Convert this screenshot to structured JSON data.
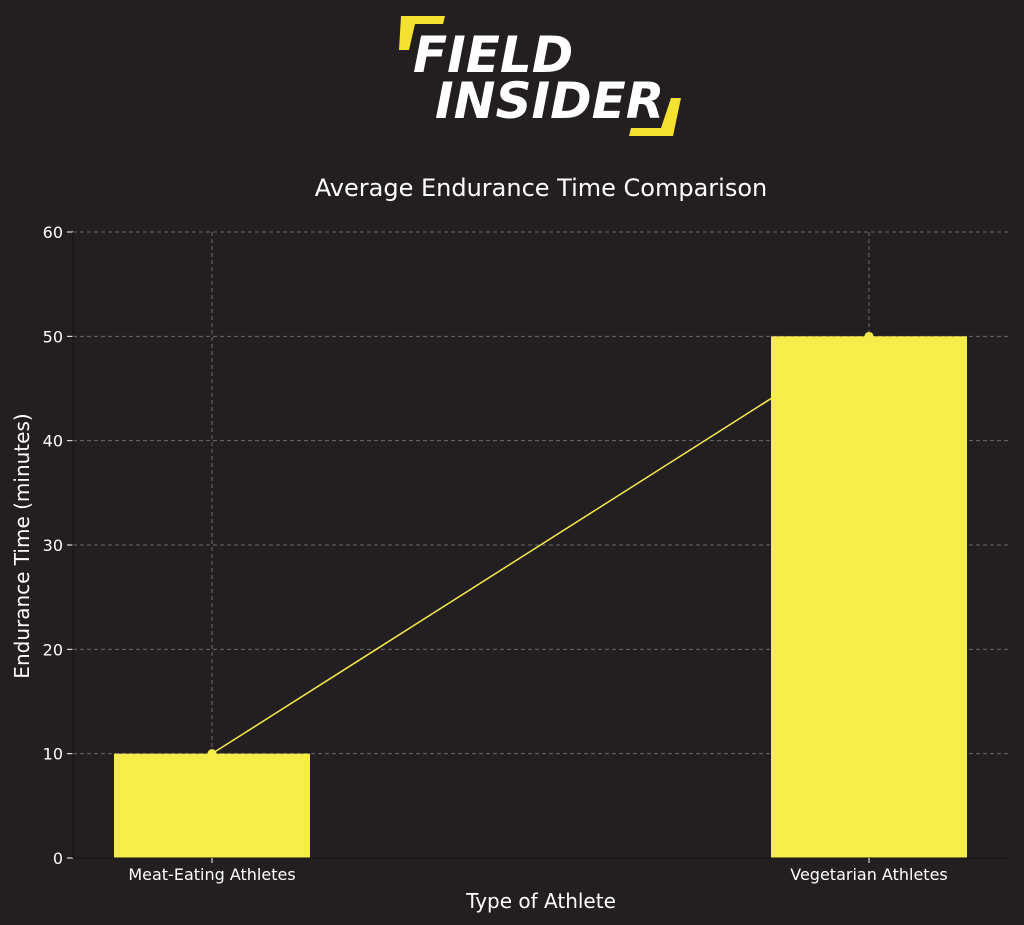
{
  "brand": {
    "line1": "FIELD",
    "line2": "INSIDER",
    "accent_color": "#f5e130"
  },
  "chart_data": {
    "type": "bar",
    "title": "Average Endurance Time Comparison",
    "xlabel": "Type of Athlete",
    "ylabel": "Endurance Time (minutes)",
    "categories": [
      "Meat-Eating Athletes",
      "Vegetarian Athletes"
    ],
    "values": [
      10,
      50
    ],
    "ylim": [
      0,
      60
    ],
    "yticks": [
      0,
      10,
      20,
      30,
      40,
      50,
      60
    ],
    "overlay_line": true,
    "grid": true,
    "bar_color": "#f6ec4a",
    "line_color": "#f6ec4a",
    "background_color": "#231f20",
    "text_color": "#ffffff"
  }
}
